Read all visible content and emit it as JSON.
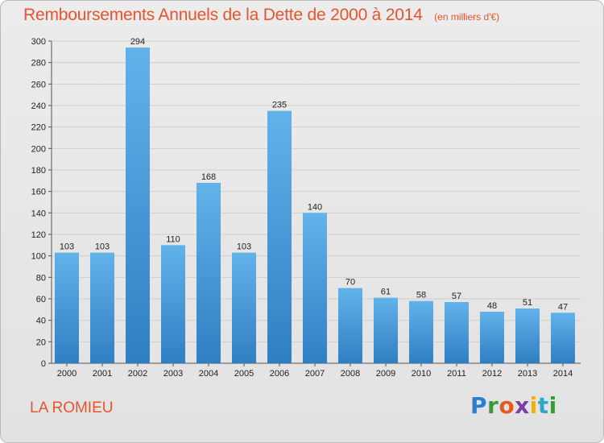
{
  "header": {
    "title": "Remboursements Annuels de la Dette de 2000 à 2014",
    "subtitle": "(en milliers d'€)"
  },
  "footer": {
    "place": "LA ROMIEU",
    "logo_text": "Proxiti",
    "logo_colors": [
      "#2b7fd0",
      "#3a9a3a",
      "#e65a1e",
      "#7a3ea6",
      "#e8b21c",
      "#2aa7c9",
      "#3a9a3a"
    ]
  },
  "colors": {
    "bar_top": "#62b2ea",
    "bar_bottom": "#2f7fc4",
    "accent": "#e8542c",
    "grid": "#cfcfcf"
  },
  "chart_data": {
    "type": "bar",
    "title": "Remboursements Annuels de la Dette de 2000 à 2014",
    "subtitle": "(en milliers d'€)",
    "xlabel": "",
    "ylabel": "",
    "categories": [
      "2000",
      "2001",
      "2002",
      "2003",
      "2004",
      "2005",
      "2006",
      "2007",
      "2008",
      "2009",
      "2010",
      "2011",
      "2012",
      "2013",
      "2014"
    ],
    "values": [
      103,
      103,
      294,
      110,
      168,
      103,
      235,
      140,
      70,
      61,
      58,
      57,
      48,
      51,
      47
    ],
    "ylim": [
      0,
      300
    ],
    "yticks": [
      0,
      20,
      40,
      60,
      80,
      100,
      120,
      140,
      160,
      180,
      200,
      220,
      240,
      260,
      280,
      300
    ],
    "grid": "horizontal",
    "legend": "none",
    "data_labels": true
  }
}
